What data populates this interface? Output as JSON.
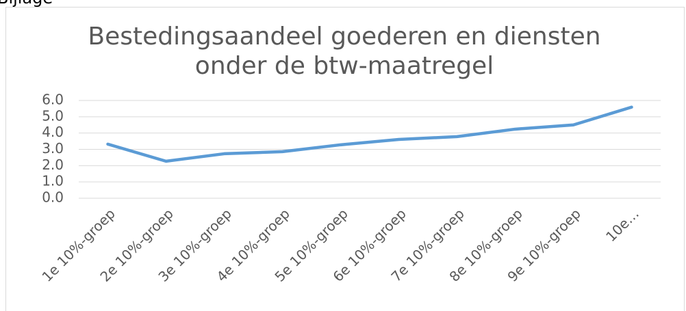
{
  "header": {
    "label": "Bijlage"
  },
  "chart_data": {
    "type": "line",
    "title": [
      "Bestedingsaandeel goederen en diensten",
      "onder de btw-maatregel"
    ],
    "categories": [
      "1e 10%-groep",
      "2e 10%-groep",
      "3e 10%-groep",
      "4e 10%-groep",
      "5e 10%-groep",
      "6e 10%-groep",
      "7e 10%-groep",
      "8e 10%-groep",
      "9e 10%-groep",
      "10e…"
    ],
    "series": [
      {
        "color": "#5b9bd5",
        "values": [
          3.32,
          2.27,
          2.73,
          2.86,
          3.28,
          3.61,
          3.78,
          4.24,
          4.5,
          5.59
        ]
      }
    ],
    "ylim": [
      0,
      6
    ],
    "yticks": [
      {
        "value": 0,
        "label": "0.0"
      },
      {
        "value": 1,
        "label": "1.0"
      },
      {
        "value": 2,
        "label": "2.0"
      },
      {
        "value": 3,
        "label": "3.0"
      },
      {
        "value": 4,
        "label": "4.0"
      },
      {
        "value": 5,
        "label": "5.0"
      },
      {
        "value": 6,
        "label": "6.0"
      }
    ],
    "grid": true
  }
}
